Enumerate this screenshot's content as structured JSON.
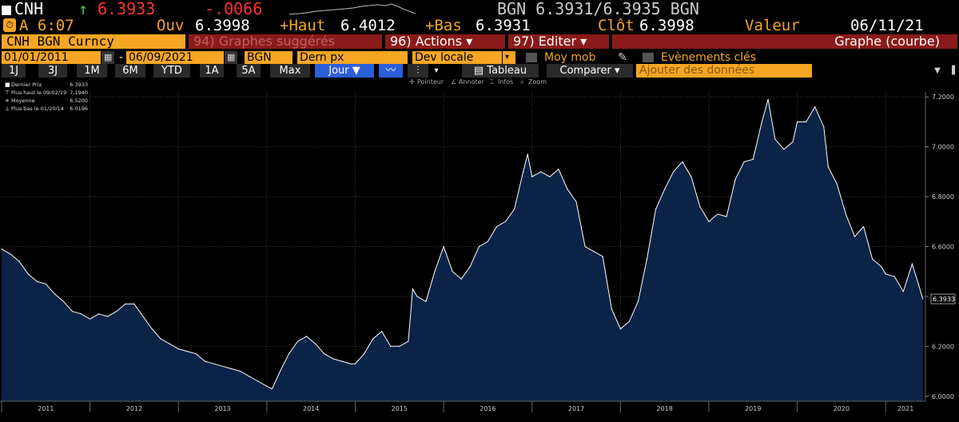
{
  "ticker_bar": {
    "ticker": "CNH",
    "arrow": "↑",
    "last": "6.3933",
    "change": "-.0066",
    "bid_ask": "BGN 6.3931/6.3935 BGN",
    "up_color": "#3fd13f",
    "down_color": "#ff3030"
  },
  "stats_bar": {
    "time": "A 6:07",
    "open_label": "Ouv",
    "open": "6.3998",
    "high_label": "+Haut",
    "high": "6.4012",
    "low_label": "+Bas",
    "low": "6.3931",
    "close_label": "Clôt",
    "close": "6.3998",
    "value_label": "Valeur",
    "value_date": "06/11/21",
    "accent": "#f5a623"
  },
  "command_bar": {
    "security": "CNH BGN Curncy",
    "suggested": "94) Graphes suggérés",
    "actions": "96) Actions",
    "edit": "97) Editer",
    "chart_type": "Graphe (courbe)",
    "bar_color": "#8b1a1a"
  },
  "settings_bar": {
    "start_date": "01/01/2011",
    "dash": "-",
    "end_date": "06/09/2021",
    "source": "BGN",
    "field": "Dern px",
    "currency": "Dev locale",
    "moving_avg": "Moy mob",
    "key_events": "Evènements clés"
  },
  "period_bar": {
    "periods": [
      "1J",
      "3J",
      "1M",
      "6M",
      "YTD",
      "1A",
      "5A",
      "Max"
    ],
    "frequency": "Jour",
    "table": "Tableau",
    "compare": "Comparer",
    "add_data": "Ajouter des données"
  },
  "chart_toolbar": {
    "pointer": "Pointeur",
    "annotate": "Annoter",
    "infos": "Infos",
    "zoom": "Zoom"
  },
  "legend": [
    {
      "label": "Dernier Prix",
      "value": "6.3933"
    },
    {
      "label": "Plus haut le 09/02/19",
      "value": "7.1940"
    },
    {
      "label": "Moyenne",
      "value": "6.5200"
    },
    {
      "label": "Plus bas le 01/20/14",
      "value": "6.0196"
    }
  ],
  "chart_data": {
    "type": "area",
    "title": "",
    "xlabel": "",
    "ylabel": "",
    "x_ticks": [
      "2011",
      "2012",
      "2013",
      "2014",
      "2015",
      "2016",
      "2017",
      "2018",
      "2019",
      "2020",
      "2021"
    ],
    "y_ticks": [
      "6.0000",
      "6.2000",
      "6.4000",
      "6.6000",
      "6.8000",
      "7.0000",
      "7.2000"
    ],
    "ylim": [
      5.98,
      7.22
    ],
    "xlim": [
      2011.0,
      2021.45
    ],
    "last_value_label": "6.3933",
    "grid": true,
    "legend_position": "top-left",
    "line_color": "#ffffff",
    "fill_color": "#0b2346",
    "series": [
      {
        "name": "Dernier Prix",
        "x": [
          2011.0,
          2011.1,
          2011.2,
          2011.3,
          2011.4,
          2011.5,
          2011.6,
          2011.7,
          2011.8,
          2011.9,
          2012.0,
          2012.1,
          2012.2,
          2012.3,
          2012.4,
          2012.5,
          2012.6,
          2012.7,
          2012.8,
          2012.9,
          2013.0,
          2013.1,
          2013.2,
          2013.3,
          2013.4,
          2013.5,
          2013.6,
          2013.7,
          2013.8,
          2013.9,
          2014.0,
          2014.06,
          2014.15,
          2014.25,
          2014.35,
          2014.45,
          2014.55,
          2014.65,
          2014.75,
          2014.85,
          2014.95,
          2015.0,
          2015.1,
          2015.2,
          2015.3,
          2015.4,
          2015.5,
          2015.6,
          2015.65,
          2015.7,
          2015.8,
          2015.9,
          2016.0,
          2016.1,
          2016.2,
          2016.3,
          2016.4,
          2016.5,
          2016.6,
          2016.7,
          2016.8,
          2016.9,
          2016.95,
          2017.0,
          2017.1,
          2017.2,
          2017.3,
          2017.4,
          2017.5,
          2017.6,
          2017.7,
          2017.8,
          2017.9,
          2018.0,
          2018.1,
          2018.2,
          2018.3,
          2018.4,
          2018.5,
          2018.6,
          2018.7,
          2018.8,
          2018.9,
          2019.0,
          2019.1,
          2019.2,
          2019.3,
          2019.4,
          2019.5,
          2019.6,
          2019.67,
          2019.75,
          2019.85,
          2019.95,
          2020.0,
          2020.1,
          2020.2,
          2020.3,
          2020.35,
          2020.45,
          2020.55,
          2020.65,
          2020.75,
          2020.85,
          2020.95,
          2021.0,
          2021.1,
          2021.2,
          2021.3,
          2021.37,
          2021.42
        ],
        "values": [
          6.59,
          6.57,
          6.54,
          6.49,
          6.46,
          6.45,
          6.41,
          6.38,
          6.34,
          6.33,
          6.31,
          6.33,
          6.32,
          6.34,
          6.37,
          6.37,
          6.32,
          6.27,
          6.23,
          6.21,
          6.19,
          6.18,
          6.17,
          6.14,
          6.13,
          6.12,
          6.11,
          6.1,
          6.08,
          6.06,
          6.04,
          6.03,
          6.1,
          6.17,
          6.22,
          6.24,
          6.21,
          6.17,
          6.15,
          6.14,
          6.13,
          6.13,
          6.17,
          6.23,
          6.26,
          6.2,
          6.2,
          6.22,
          6.43,
          6.4,
          6.38,
          6.5,
          6.6,
          6.5,
          6.47,
          6.52,
          6.6,
          6.62,
          6.68,
          6.7,
          6.75,
          6.9,
          6.97,
          6.88,
          6.9,
          6.88,
          6.91,
          6.83,
          6.78,
          6.6,
          6.58,
          6.56,
          6.35,
          6.27,
          6.3,
          6.38,
          6.55,
          6.75,
          6.83,
          6.9,
          6.94,
          6.88,
          6.76,
          6.7,
          6.73,
          6.72,
          6.87,
          6.94,
          6.95,
          7.1,
          7.19,
          7.03,
          6.99,
          7.02,
          7.1,
          7.1,
          7.16,
          7.08,
          6.92,
          6.85,
          6.73,
          6.64,
          6.68,
          6.55,
          6.52,
          6.49,
          6.48,
          6.42,
          6.53,
          6.45,
          6.39
        ]
      }
    ]
  }
}
